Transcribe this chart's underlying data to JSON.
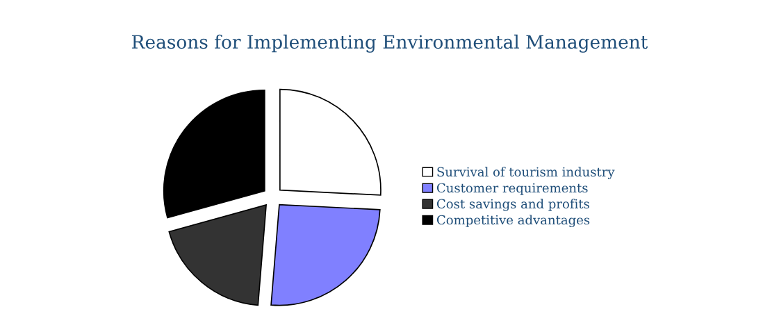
{
  "chart_data": {
    "type": "pie",
    "title": "Reasons for Implementing Environmental Management",
    "categories": [
      "Survival of tourism industry",
      "Customer requirements",
      "Cost savings and profits",
      "Competitive advantages"
    ],
    "values": [
      25.8,
      25.5,
      19.4,
      29.3
    ],
    "colors": [
      "#ffffff",
      "#8080ff",
      "#333333",
      "#000000"
    ],
    "legend": "right"
  }
}
